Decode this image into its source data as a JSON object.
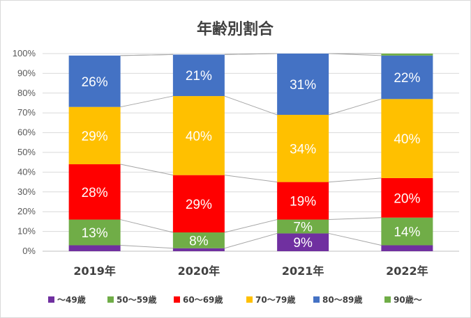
{
  "chart_data": {
    "type": "bar",
    "stacked": true,
    "title": "年齢別割合",
    "categories": [
      "2019年",
      "2020年",
      "2021年",
      "2022年"
    ],
    "ylim": [
      0,
      100
    ],
    "yticks": [
      "0%",
      "10%",
      "20%",
      "30%",
      "40%",
      "50%",
      "60%",
      "70%",
      "80%",
      "90%",
      "100%"
    ],
    "grid": true,
    "legend_position": "bottom",
    "series_lines": true,
    "series": [
      {
        "name": "～49歳",
        "color": "#7030a0",
        "values": [
          3,
          1.5,
          9,
          3
        ],
        "labels": [
          "",
          "",
          "9%",
          ""
        ]
      },
      {
        "name": "50～59歳",
        "color": "#70ad47",
        "values": [
          13,
          8,
          7,
          14
        ],
        "labels": [
          "13%",
          "8%",
          "7%",
          "14%"
        ]
      },
      {
        "name": "60～69歳",
        "color": "#ff0000",
        "values": [
          28,
          29,
          19,
          20
        ],
        "labels": [
          "28%",
          "29%",
          "19%",
          "20%"
        ]
      },
      {
        "name": "70～79歳",
        "color": "#ffc000",
        "values": [
          29,
          40,
          34,
          40
        ],
        "labels": [
          "29%",
          "40%",
          "34%",
          "40%"
        ]
      },
      {
        "name": "80～89歳",
        "color": "#4472c4",
        "values": [
          26,
          21,
          31,
          22
        ],
        "labels": [
          "26%",
          "21%",
          "31%",
          "22%"
        ]
      },
      {
        "name": "90歳～",
        "color": "#70ad47",
        "values": [
          0,
          0,
          0,
          1
        ],
        "labels": [
          "",
          "",
          "",
          ""
        ]
      }
    ]
  }
}
